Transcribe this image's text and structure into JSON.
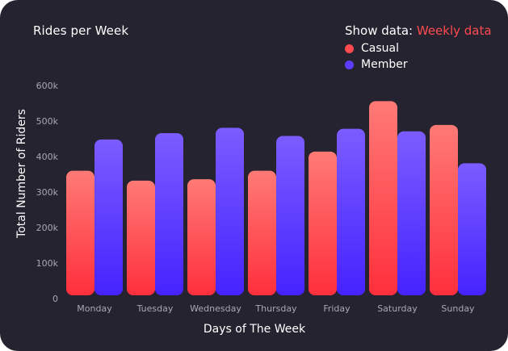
{
  "header": {
    "title": "Rides per Week",
    "show_data_label": "Show data:",
    "show_data_value": "Weekly data"
  },
  "colors": {
    "casual": "#ff4a4f",
    "member": "#5b3dff",
    "background": "#25232f"
  },
  "chart_data": {
    "type": "bar",
    "title": "Rides per Week",
    "xlabel": "Days of The Week",
    "ylabel": "Total Number of Riders",
    "categories": [
      "Monday",
      "Tuesday",
      "Wednesday",
      "Thursday",
      "Friday",
      "Saturday",
      "Sunday"
    ],
    "ylim": [
      0,
      600000
    ],
    "yticks": [
      0,
      100000,
      200000,
      300000,
      400000,
      500000,
      600000
    ],
    "ytick_labels": [
      "0",
      "100k",
      "200k",
      "300k",
      "400k",
      "500k",
      "600k"
    ],
    "legend_position": "top-right",
    "grid": false,
    "series": [
      {
        "name": "Casual",
        "color": "#ff4a4f",
        "values": [
          360000,
          332000,
          336000,
          360000,
          414000,
          556000,
          489000
        ]
      },
      {
        "name": "Member",
        "color": "#5b3dff",
        "values": [
          448000,
          466000,
          481000,
          458000,
          478000,
          471000,
          381000
        ]
      }
    ]
  }
}
